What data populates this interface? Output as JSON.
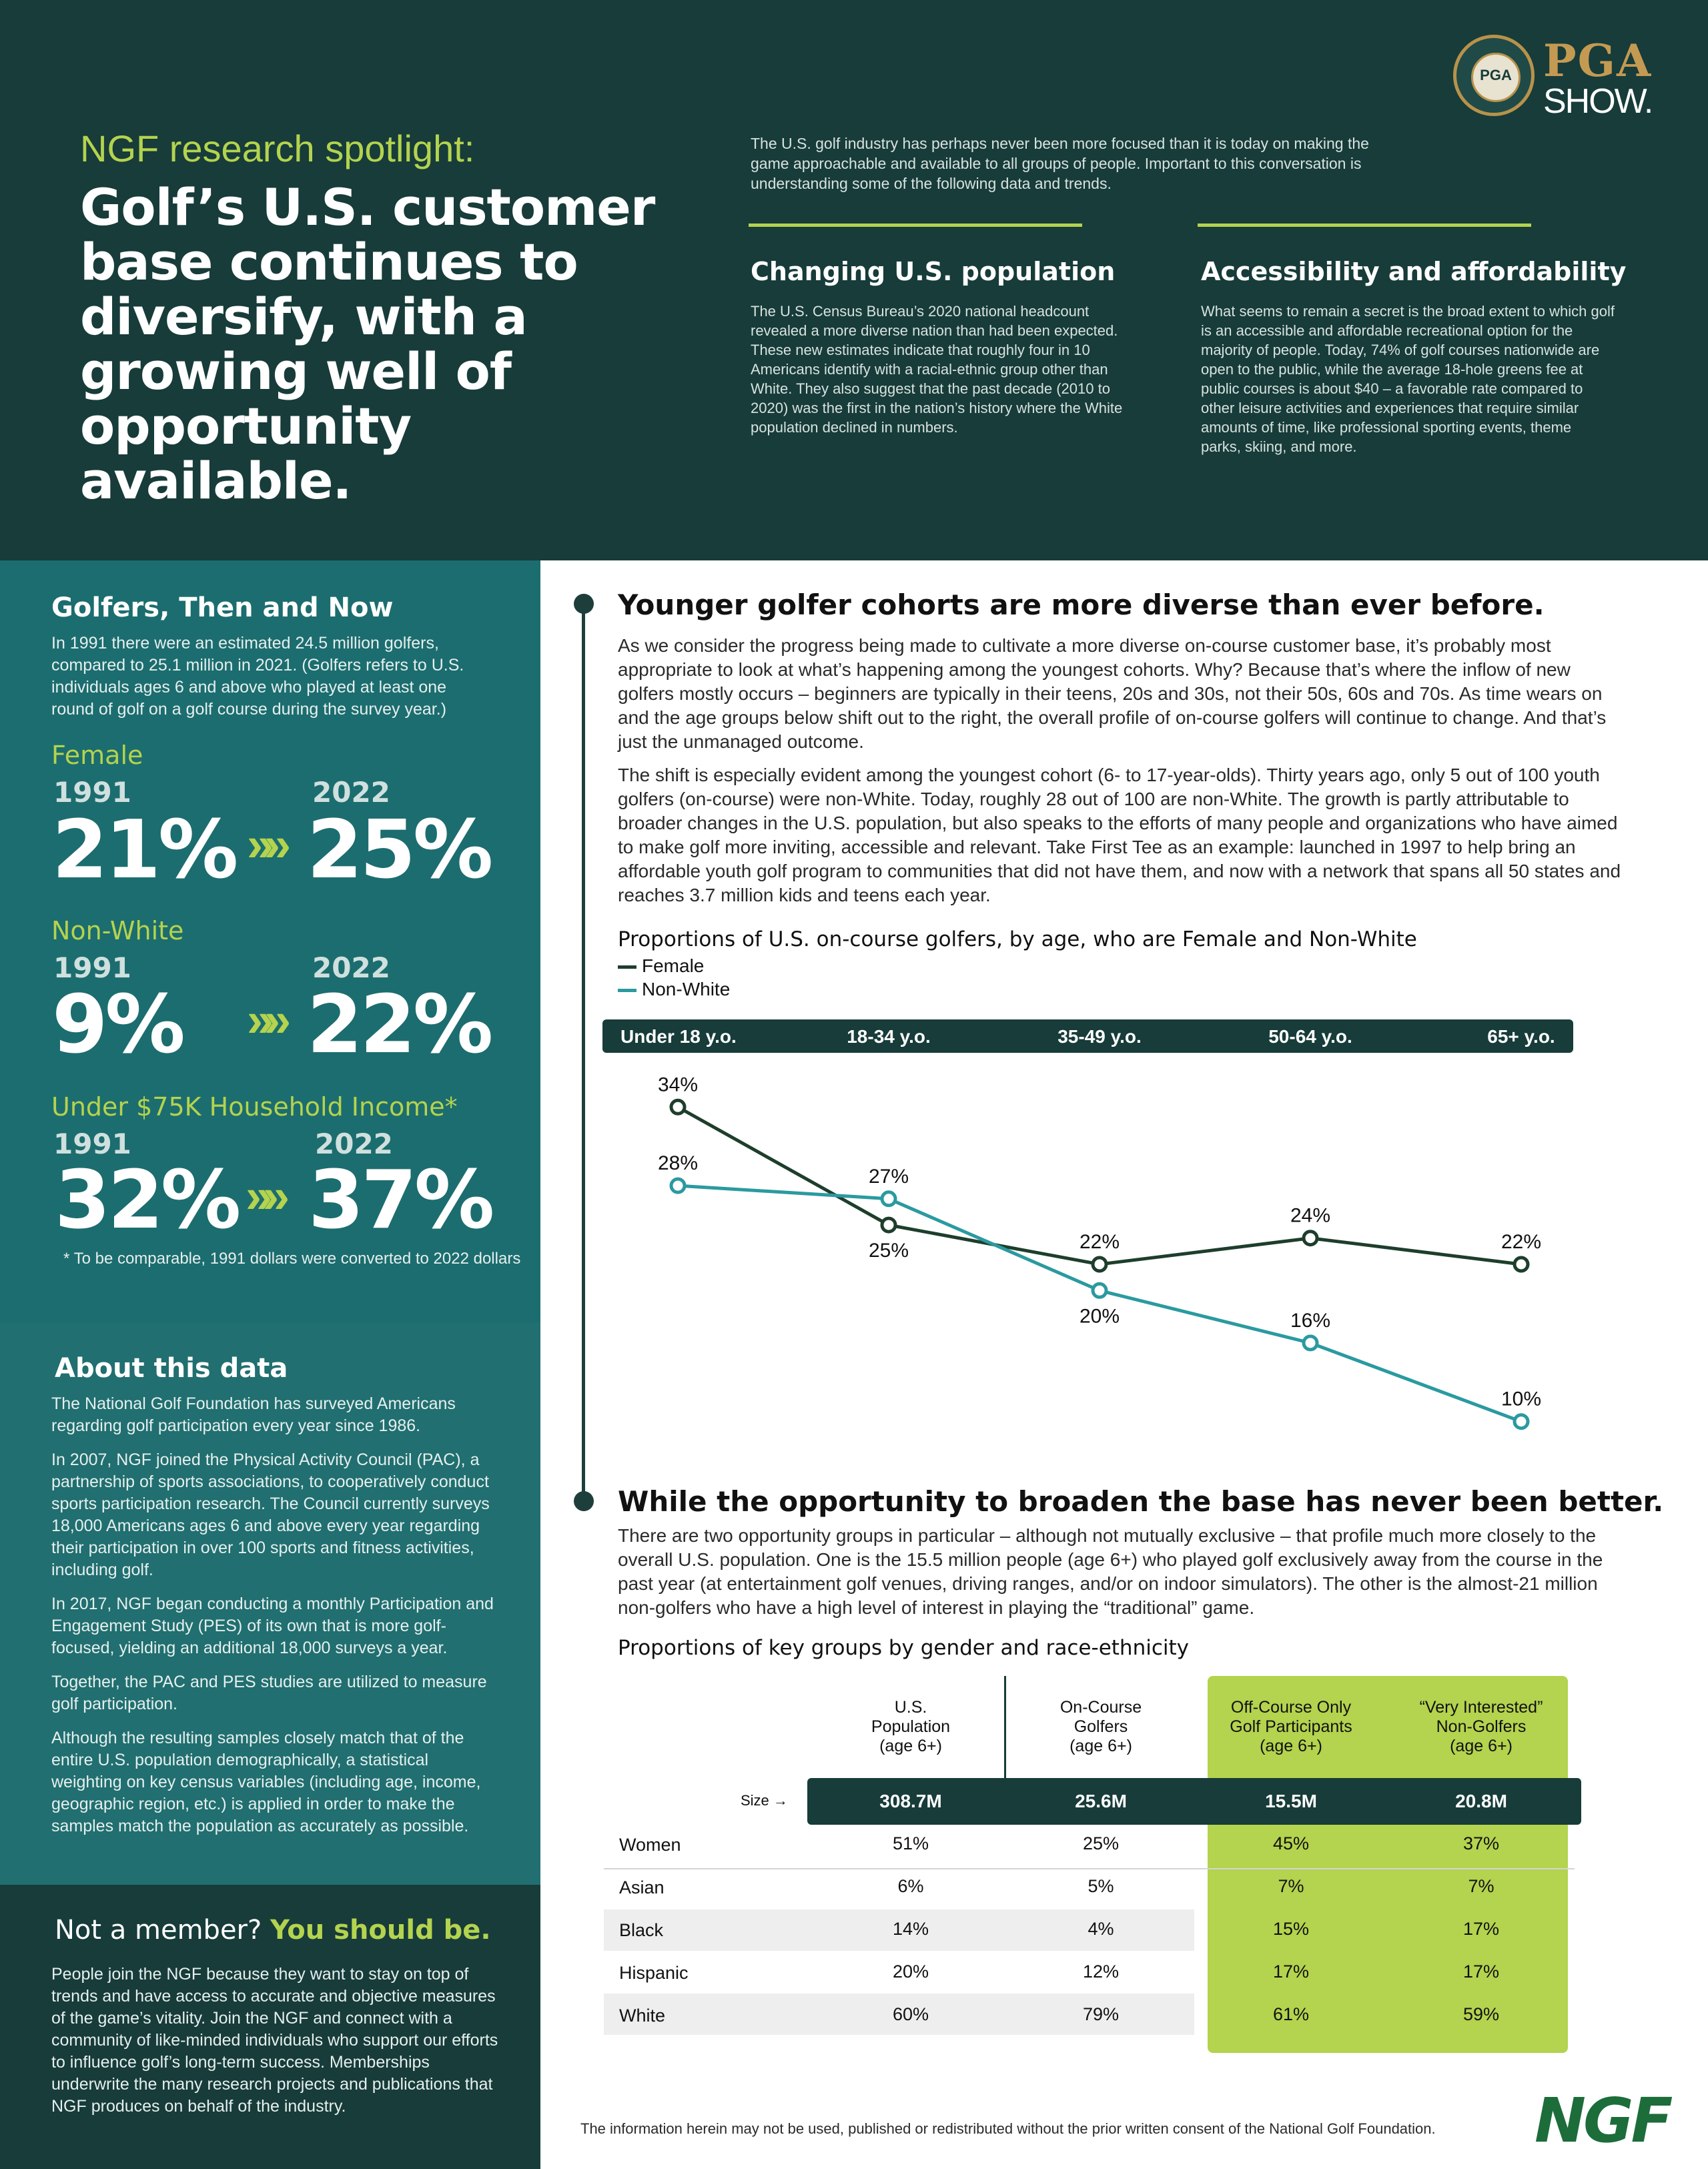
{
  "header": {
    "kicker": "NGF research spotlight:",
    "title": "Golf’s U.S. customer base continues to diversify, with a growing well of opportunity available.",
    "intro": "The U.S. golf industry has perhaps never been more focused than it is today on making the game approachable and available to all groups of people. Important to this conversation is understanding some of the following data and trends.",
    "col1_title": "Changing U.S. population",
    "col1_text": "The U.S. Census Bureau’s 2020 national headcount revealed a more diverse nation than had been expected. These new estimates indicate that roughly four in 10 Americans identify with a racial-ethnic group other than White. They also suggest that the past decade (2010 to 2020) was the first in the nation’s history where the White population declined in numbers.",
    "col2_title": "Accessibility and affordability",
    "col2_text": "What seems to remain a secret is the broad extent to which golf is an accessible and affordable recreational option for the majority of people. Today, 74% of golf courses nationwide are open to the public, while the average 18-hole greens fee at public courses is about $40 – a favorable rate compared to other leisure activities and experiences that require similar amounts of time, like professional sporting events, theme parks, skiing, and more.",
    "logo_pga": "PGA",
    "logo_show": "SHOW.",
    "logo_seal": "PGA"
  },
  "golfers": {
    "title": "Golfers, Then and Now",
    "text": "In 1991 there were an estimated 24.5 million golfers, compared to 25.1 million in 2021. (Golfers refers to U.S. individuals ages 6 and above who played at least one round of golf on a golf course during the survey year.)",
    "stats": [
      {
        "label": "Female",
        "year_a": "1991",
        "year_b": "2022",
        "val_a": "21%",
        "val_b": "25%"
      },
      {
        "label": "Non-White",
        "year_a": "1991",
        "year_b": "2022",
        "val_a": "9%",
        "val_b": "22%"
      },
      {
        "label": "Under $75K Household Income*",
        "year_a": "1991",
        "year_b": "2022",
        "val_a": "32%",
        "val_b": "37%"
      }
    ],
    "chevron": "»»",
    "footnote": "* To be comparable, 1991 dollars were converted to 2022 dollars"
  },
  "about": {
    "title": "About this data",
    "paragraphs": [
      "The National Golf Foundation has surveyed Americans regarding golf participation every year since 1986.",
      "In 2007, NGF joined the Physical Activity Council (PAC), a partnership of sports associations, to cooperatively conduct sports participation research. The Council currently surveys 18,000 Americans ages 6 and above every year regarding their participation in over 100 sports and fitness activities, including golf.",
      "In 2017, NGF began conducting a monthly Participation and Engagement Study (PES) of its own that is more golf-focused, yielding an additional 18,000 surveys a year.",
      "Together, the PAC and PES studies are utilized to measure golf participation.",
      "Although the resulting samples closely match that of the entire U.S. population demographically, a statistical weighting on key census variables (including age, income, geographic region, etc.) is applied in order to make the samples match the population as accurately as possible."
    ]
  },
  "member": {
    "title_a": "Not a member?",
    "title_b": "You should be.",
    "text": "People join the NGF because they want to stay on top of trends and have access to accurate and objective measures of the game’s vitality. Join the NGF and connect with a community of like-minded individuals who support our efforts to influence golf’s long-term success. Memberships underwrite the many research projects and publications that NGF produces on behalf of the industry."
  },
  "section1": {
    "heading": "Younger golfer cohorts are more diverse than ever before.",
    "p1": "As we consider the progress being made to cultivate a more diverse on-course customer base, it’s probably most appropriate to look at what’s happening among the youngest cohorts. Why? Because that’s where the inflow of new golfers mostly occurs – beginners are typically in their teens, 20s and 30s, not their 50s, 60s and 70s. As time wears on and the age groups below shift out to the right, the overall profile of on-course golfers will continue to change. And that’s just the unmanaged outcome.",
    "p2": "The shift is especially evident among the youngest cohort (6- to 17-year-olds). Thirty years ago, only 5 out of 100 youth golfers (on-course) were non-White. Today, roughly 28 out of 100 are non-White. The growth is partly attributable to broader changes in the U.S. population, but also speaks to the efforts of many people and organizations who have aimed to make golf more inviting, accessible and relevant. Take First Tee as an example: launched in 1997 to help bring an affordable youth golf program to communities that did not have them, and now with a network that spans all 50 states and reaches 3.7 million kids and teens each year."
  },
  "chart_data": {
    "type": "line",
    "title": "Proportions of U.S. on-course golfers, by age, who are Female and Non-White",
    "categories": [
      "Under 18 y.o.",
      "18-34 y.o.",
      "35-49 y.o.",
      "50-64 y.o.",
      "65+ y.o."
    ],
    "series": [
      {
        "name": "Female",
        "values": [
          34,
          25,
          22,
          24,
          22
        ],
        "labels": [
          "34%",
          "25%",
          "22%",
          "24%",
          "22%"
        ],
        "color": "#1e3e2c"
      },
      {
        "name": "Non-White",
        "values": [
          28,
          27,
          20,
          16,
          10
        ],
        "labels": [
          "28%",
          "27%",
          "20%",
          "16%",
          "10%"
        ],
        "color": "#2a9aa0"
      }
    ],
    "ylim": [
      8,
      36
    ],
    "legend": "top-left"
  },
  "section2": {
    "heading": "While the opportunity to broaden the base has never been better.",
    "p1": "There are two opportunity groups in particular – although not mutually exclusive – that profile much more closely to the overall U.S. population. One is the 15.5 million people (age 6+) who played golf exclusively away from the course in the past year (at entertainment golf venues, driving ranges, and/or on indoor simulators). The other is the almost-21 million non-golfers who have a high level of interest in playing the “traditional” game.",
    "table_title": "Proportions of key groups by gender and race-ethnicity"
  },
  "table": {
    "columns": [
      "U.S.\nPopulation\n(age 6+)",
      "On-Course\nGolfers\n(age 6+)",
      "Off-Course Only\nGolf Participants\n(age 6+)",
      "“Very Interested”\nNon-Golfers\n(age 6+)"
    ],
    "size_label": "Size →",
    "sizes": [
      "308.7M",
      "25.6M",
      "15.5M",
      "20.8M"
    ],
    "rows": [
      {
        "label": "Women",
        "values": [
          "51%",
          "25%",
          "45%",
          "37%"
        ]
      },
      {
        "label": "Asian",
        "values": [
          "6%",
          "5%",
          "7%",
          "7%"
        ]
      },
      {
        "label": "Black",
        "values": [
          "14%",
          "4%",
          "15%",
          "17%"
        ]
      },
      {
        "label": "Hispanic",
        "values": [
          "20%",
          "12%",
          "17%",
          "17%"
        ]
      },
      {
        "label": "White",
        "values": [
          "60%",
          "79%",
          "61%",
          "59%"
        ]
      }
    ]
  },
  "footer": {
    "disclaimer": "The information herein may not be used, published or redistributed without the prior written consent of the National Golf Foundation.",
    "logo": "NGF"
  },
  "colors": {
    "dark_green": "#173c3a",
    "teal": "#1c6d6f",
    "lime": "#b4d34e",
    "nonwhite_line": "#2a9aa0",
    "female_line": "#1e3e2c"
  }
}
